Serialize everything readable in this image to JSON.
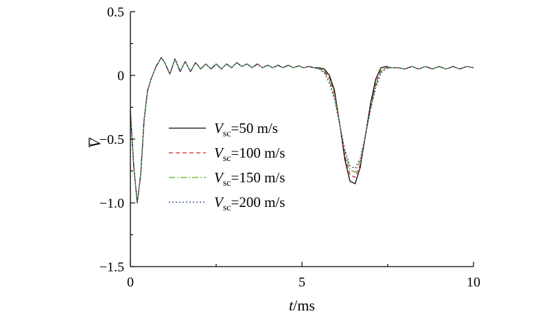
{
  "chart_data": {
    "type": "line",
    "xlabel": {
      "italic": "t",
      "rest": "/ms"
    },
    "ylabel": "V",
    "xlim": [
      0,
      10
    ],
    "ylim": [
      -1.5,
      0.5
    ],
    "x_ticks": [
      0,
      5,
      10
    ],
    "x_tick_labels": [
      "0",
      "5",
      "10"
    ],
    "y_ticks": [
      -1.5,
      -1.0,
      -0.5,
      0,
      0.5
    ],
    "y_tick_labels": [
      "−1.5",
      "−1.0",
      "−0.5",
      "0",
      "0.5"
    ],
    "grid": false,
    "legend_position": "center-left",
    "legend": [
      {
        "var": "V",
        "sub": "sc",
        "value": "=50 m/s"
      },
      {
        "var": "V",
        "sub": "sc",
        "value": "=100 m/s"
      },
      {
        "var": "V",
        "sub": "sc",
        "value": "=150 m/s"
      },
      {
        "var": "V",
        "sub": "sc",
        "value": "=200 m/s"
      }
    ],
    "shared_x": [
      0,
      0.1,
      0.2,
      0.3,
      0.4,
      0.5,
      0.6,
      0.75,
      0.9,
      1.0,
      1.15,
      1.3,
      1.45,
      1.6,
      1.75,
      1.9,
      2.05,
      2.2,
      2.35,
      2.5,
      2.65,
      2.8,
      2.95,
      3.1,
      3.25,
      3.4,
      3.55,
      3.7,
      3.85,
      4.0,
      4.15,
      4.3,
      4.45,
      4.6,
      4.75,
      4.9,
      5.05,
      5.2,
      5.35
    ],
    "shared_y": [
      -0.28,
      -0.72,
      -1.0,
      -0.78,
      -0.35,
      -0.12,
      -0.03,
      0.07,
      0.14,
      0.1,
      0.01,
      0.13,
      0.03,
      0.11,
      0.03,
      0.1,
      0.05,
      0.09,
      0.05,
      0.09,
      0.05,
      0.09,
      0.06,
      0.1,
      0.07,
      0.09,
      0.06,
      0.09,
      0.06,
      0.08,
      0.06,
      0.08,
      0.06,
      0.08,
      0.06,
      0.075,
      0.06,
      0.07,
      0.06
    ],
    "series": [
      {
        "name": "V_sc=50 m/s",
        "color": "#000000",
        "dash": "",
        "x": [
          5.5,
          5.65,
          5.8,
          5.95,
          6.1,
          6.25,
          6.4,
          6.55,
          6.7,
          6.85,
          7.0,
          7.15,
          7.3,
          7.45,
          7.6,
          7.8,
          8.0,
          8.2,
          8.4,
          8.6,
          8.8,
          9.0,
          9.2,
          9.4,
          9.6,
          9.8,
          10.0
        ],
        "y": [
          0.06,
          0.05,
          0.0,
          -0.12,
          -0.38,
          -0.66,
          -0.83,
          -0.85,
          -0.72,
          -0.47,
          -0.22,
          -0.03,
          0.06,
          0.07,
          0.06,
          0.06,
          0.05,
          0.07,
          0.05,
          0.07,
          0.05,
          0.07,
          0.05,
          0.07,
          0.05,
          0.07,
          0.06
        ]
      },
      {
        "name": "V_sc=100 m/s",
        "color": "#cc2222",
        "dash": "6,4",
        "x": [
          5.5,
          5.65,
          5.8,
          5.95,
          6.1,
          6.25,
          6.4,
          6.55,
          6.7,
          6.85,
          7.0,
          7.15,
          7.3,
          7.45,
          7.6,
          7.8,
          8.0,
          8.2,
          8.4,
          8.6,
          8.8,
          9.0,
          9.2,
          9.4,
          9.6,
          9.8,
          10.0
        ],
        "y": [
          0.05,
          0.04,
          -0.02,
          -0.14,
          -0.38,
          -0.63,
          -0.78,
          -0.8,
          -0.7,
          -0.48,
          -0.25,
          -0.06,
          0.04,
          0.06,
          0.06,
          0.06,
          0.05,
          0.07,
          0.05,
          0.07,
          0.05,
          0.07,
          0.05,
          0.07,
          0.05,
          0.07,
          0.06
        ]
      },
      {
        "name": "V_sc=150 m/s",
        "color": "#55aa22",
        "dash": "9,3,2,3",
        "x": [
          5.5,
          5.65,
          5.8,
          5.95,
          6.1,
          6.25,
          6.4,
          6.55,
          6.7,
          6.85,
          7.0,
          7.15,
          7.3,
          7.45,
          7.6,
          7.8,
          8.0,
          8.2,
          8.4,
          8.6,
          8.8,
          9.0,
          9.2,
          9.4,
          9.6,
          9.8,
          10.0
        ],
        "y": [
          0.05,
          0.03,
          -0.04,
          -0.17,
          -0.38,
          -0.6,
          -0.74,
          -0.76,
          -0.67,
          -0.47,
          -0.26,
          -0.08,
          0.03,
          0.06,
          0.06,
          0.06,
          0.05,
          0.07,
          0.05,
          0.07,
          0.05,
          0.07,
          0.05,
          0.07,
          0.05,
          0.07,
          0.06
        ]
      },
      {
        "name": "V_sc=200 m/s",
        "color": "#1a3a99",
        "dash": "2,3",
        "x": [
          5.5,
          5.65,
          5.8,
          5.95,
          6.1,
          6.25,
          6.4,
          6.55,
          6.7,
          6.85,
          7.0,
          7.15,
          7.3,
          7.45,
          7.6,
          7.8,
          8.0,
          8.2,
          8.4,
          8.6,
          8.8,
          9.0,
          9.2,
          9.4,
          9.6,
          9.8,
          10.0
        ],
        "y": [
          0.05,
          0.02,
          -0.06,
          -0.19,
          -0.39,
          -0.58,
          -0.71,
          -0.73,
          -0.65,
          -0.47,
          -0.27,
          -0.1,
          0.02,
          0.05,
          0.06,
          0.06,
          0.05,
          0.07,
          0.05,
          0.07,
          0.05,
          0.07,
          0.05,
          0.07,
          0.05,
          0.07,
          0.06
        ]
      }
    ]
  }
}
